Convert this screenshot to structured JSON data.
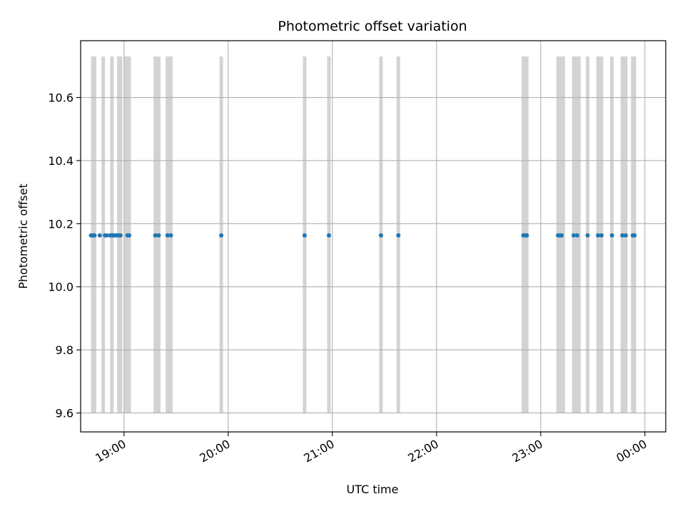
{
  "chart_data": {
    "type": "scatter",
    "title": "Photometric offset variation",
    "xlabel": "UTC time",
    "ylabel": "Photometric offset",
    "x_axis": {
      "type": "time",
      "range": [
        "18:35",
        "00:12"
      ],
      "ticks": [
        "19:00",
        "20:00",
        "21:00",
        "22:00",
        "23:00",
        "00:00"
      ],
      "tick_rotation_deg": 30
    },
    "y_axis": {
      "range": [
        9.54,
        10.78
      ],
      "ticks": [
        9.6,
        9.8,
        10.0,
        10.2,
        10.4,
        10.6
      ],
      "tick_labels": [
        "9.6",
        "9.8",
        "10.0",
        "10.2",
        "10.4",
        "10.6"
      ]
    },
    "grid": true,
    "bands": {
      "color": "#d3d3d3",
      "y_range": [
        9.6,
        10.73
      ],
      "intervals": [
        [
          "18:41",
          "18:44"
        ],
        [
          "18:47",
          "18:49"
        ],
        [
          "18:52",
          "18:54"
        ],
        [
          "18:56",
          "18:59"
        ],
        [
          "19:00",
          "19:04"
        ],
        [
          "19:17",
          "19:21"
        ],
        [
          "19:24",
          "19:28"
        ],
        [
          "19:55",
          "19:57"
        ],
        [
          "20:43",
          "20:45"
        ],
        [
          "20:57",
          "20:59"
        ],
        [
          "21:27",
          "21:29"
        ],
        [
          "21:37",
          "21:39"
        ],
        [
          "22:49",
          "22:53"
        ],
        [
          "23:09",
          "23:14"
        ],
        [
          "23:18",
          "23:23"
        ],
        [
          "23:26",
          "23:28"
        ],
        [
          "23:32",
          "23:36"
        ],
        [
          "23:40",
          "23:42"
        ],
        [
          "23:46",
          "23:50"
        ],
        [
          "23:52",
          "23:55"
        ]
      ]
    },
    "points": {
      "color": "#1f77b4",
      "x": [
        "18:41",
        "18:42",
        "18:43",
        "18:46",
        "18:49",
        "18:50",
        "18:52",
        "18:53",
        "18:54",
        "18:55",
        "18:56",
        "18:57",
        "18:58",
        "19:02",
        "19:03",
        "19:18",
        "19:20",
        "19:25",
        "19:27",
        "19:56",
        "20:44",
        "20:58",
        "21:28",
        "21:38",
        "22:50",
        "22:51",
        "22:52",
        "23:10",
        "23:11",
        "23:12",
        "23:19",
        "23:21",
        "23:27",
        "23:33",
        "23:35",
        "23:41",
        "23:47",
        "23:49",
        "23:53",
        "23:54"
      ],
      "y": [
        10.163,
        10.163,
        10.163,
        10.163,
        10.163,
        10.163,
        10.163,
        10.163,
        10.163,
        10.163,
        10.163,
        10.163,
        10.163,
        10.163,
        10.163,
        10.163,
        10.163,
        10.163,
        10.163,
        10.163,
        10.163,
        10.163,
        10.163,
        10.163,
        10.163,
        10.163,
        10.163,
        10.163,
        10.163,
        10.163,
        10.163,
        10.163,
        10.163,
        10.163,
        10.163,
        10.163,
        10.163,
        10.163,
        10.163,
        10.163
      ]
    }
  }
}
